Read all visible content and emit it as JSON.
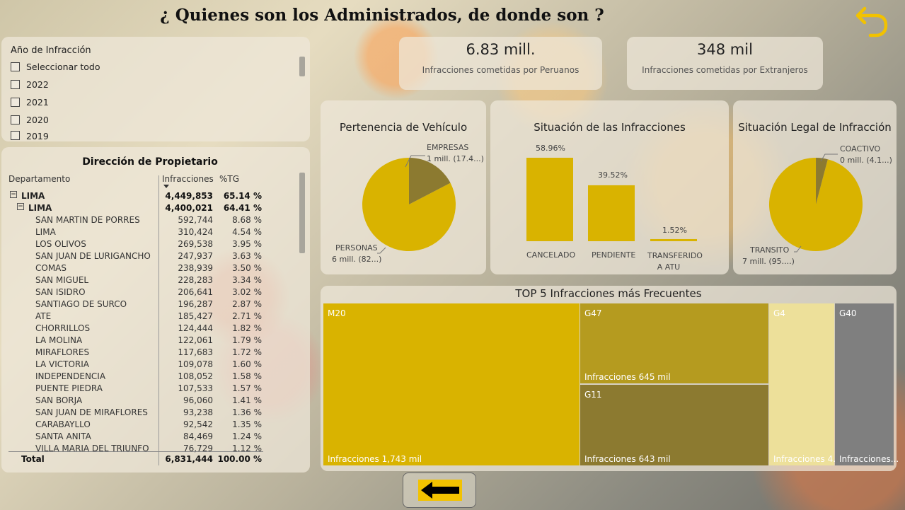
{
  "header": {
    "title": "¿ Quienes son los Administrados, de donde son ?"
  },
  "colors": {
    "gold": "#d9b300",
    "olive": "#8c7a30",
    "mustard": "#b59b1f",
    "light_gold": "#ede09a",
    "gray": "#7f7f7f"
  },
  "slicer": {
    "title": "Año de Infracción",
    "items": [
      "Seleccionar todo",
      "2022",
      "2021",
      "2020",
      "2019"
    ]
  },
  "table": {
    "title": "Dirección de Propietario",
    "headers": {
      "dept": "Departamento",
      "infr": "Infracciones",
      "pct": "%TG"
    },
    "rows": [
      {
        "name": "LIMA",
        "value": "4,449,853",
        "pct": "65.14 %",
        "level": 1
      },
      {
        "name": "LIMA",
        "value": "4,400,021",
        "pct": "64.41 %",
        "level": 2
      },
      {
        "name": "SAN MARTIN DE PORRES",
        "value": "592,744",
        "pct": "8.68 %",
        "level": 3
      },
      {
        "name": "LIMA",
        "value": "310,424",
        "pct": "4.54 %",
        "level": 3
      },
      {
        "name": "LOS OLIVOS",
        "value": "269,538",
        "pct": "3.95 %",
        "level": 3
      },
      {
        "name": "SAN JUAN DE LURIGANCHO",
        "value": "247,937",
        "pct": "3.63 %",
        "level": 3
      },
      {
        "name": "COMAS",
        "value": "238,939",
        "pct": "3.50 %",
        "level": 3
      },
      {
        "name": "SAN MIGUEL",
        "value": "228,283",
        "pct": "3.34 %",
        "level": 3
      },
      {
        "name": "SAN ISIDRO",
        "value": "206,641",
        "pct": "3.02 %",
        "level": 3
      },
      {
        "name": "SANTIAGO DE SURCO",
        "value": "196,287",
        "pct": "2.87 %",
        "level": 3
      },
      {
        "name": "ATE",
        "value": "185,427",
        "pct": "2.71 %",
        "level": 3
      },
      {
        "name": "CHORRILLOS",
        "value": "124,444",
        "pct": "1.82 %",
        "level": 3
      },
      {
        "name": "LA MOLINA",
        "value": "122,061",
        "pct": "1.79 %",
        "level": 3
      },
      {
        "name": "MIRAFLORES",
        "value": "117,683",
        "pct": "1.72 %",
        "level": 3
      },
      {
        "name": "LA VICTORIA",
        "value": "109,078",
        "pct": "1.60 %",
        "level": 3
      },
      {
        "name": "INDEPENDENCIA",
        "value": "108,052",
        "pct": "1.58 %",
        "level": 3
      },
      {
        "name": "PUENTE PIEDRA",
        "value": "107,533",
        "pct": "1.57 %",
        "level": 3
      },
      {
        "name": "SAN BORJA",
        "value": "96,060",
        "pct": "1.41 %",
        "level": 3
      },
      {
        "name": "SAN JUAN DE MIRAFLORES",
        "value": "93,238",
        "pct": "1.36 %",
        "level": 3
      },
      {
        "name": "CARABAYLLO",
        "value": "92,542",
        "pct": "1.35 %",
        "level": 3
      },
      {
        "name": "SANTA ANITA",
        "value": "84,469",
        "pct": "1.24 %",
        "level": 3
      },
      {
        "name": "VILLA MARIA DEL TRIUNFO",
        "value": "76,729",
        "pct": "1.12 %",
        "level": 3
      }
    ],
    "total": {
      "name": "Total",
      "value": "6,831,444",
      "pct": "100.00 %"
    }
  },
  "cards": [
    {
      "value": "6.83 mill.",
      "label": "Infracciones cometidas por Peruanos"
    },
    {
      "value": "348 mil",
      "label": "Infracciones cometidas por Extranjeros"
    }
  ],
  "chart_data": [
    {
      "type": "pie",
      "title": "Pertenencia de Vehículo",
      "slices": [
        {
          "name": "PERSONAS",
          "value_label": "6 mill. (82...)",
          "fraction": 0.826
        },
        {
          "name": "EMPRESAS",
          "value_label": "1 mill. (17.4...)",
          "fraction": 0.174
        }
      ]
    },
    {
      "type": "bar",
      "title": "Situación de las Infracciones",
      "categories": [
        "CANCELADO",
        "PENDIENTE",
        "TRANSFERIDO A ATU"
      ],
      "values": [
        58.96,
        39.52,
        1.52
      ],
      "value_labels": [
        "58.96%",
        "39.52%",
        "1.52%"
      ]
    },
    {
      "type": "pie",
      "title": "Situación Legal de Infracción",
      "slices": [
        {
          "name": "TRANSITO",
          "value_label": "7 mill. (95....)",
          "fraction": 0.959
        },
        {
          "name": "COACTIVO",
          "value_label": "0 mill. (4.1...)",
          "fraction": 0.041
        }
      ]
    },
    {
      "type": "treemap",
      "title": "TOP 5 Infracciones más Frecuentes",
      "tiles": [
        {
          "name": "M20",
          "value_label": "Infracciones 1,743 mil",
          "value": 1743
        },
        {
          "name": "G47",
          "value_label": "Infracciones 645 mil",
          "value": 645
        },
        {
          "name": "G11",
          "value_label": "Infracciones 643 mil",
          "value": 643
        },
        {
          "name": "G4",
          "value_label": "Infracciones 4...",
          "value": 405
        },
        {
          "name": "G40",
          "value_label": "Infracciones...",
          "value": 360
        }
      ]
    }
  ]
}
